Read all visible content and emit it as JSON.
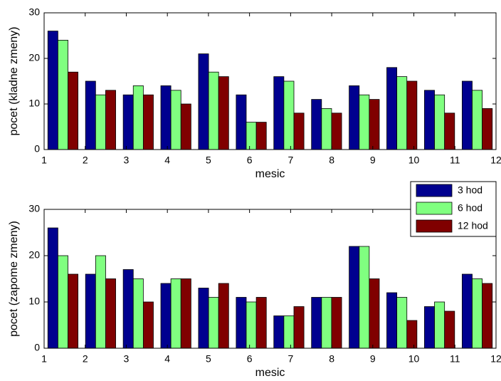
{
  "chart_data": [
    {
      "type": "bar",
      "xlabel": "mesic",
      "ylabel": "pocet (kladne zmeny)",
      "x": [
        1.458,
        2.375,
        3.292,
        4.208,
        5.125,
        6.042,
        6.958,
        7.875,
        8.792,
        9.708,
        10.625,
        11.542
      ],
      "series": [
        {
          "color": "#00008f",
          "values": [
            26,
            15,
            12,
            14,
            21,
            12,
            16,
            11,
            14,
            18,
            13,
            15
          ]
        },
        {
          "color": "#80ff80",
          "values": [
            24,
            12,
            14,
            13,
            17,
            6,
            15,
            9,
            12,
            16,
            12,
            13
          ]
        },
        {
          "color": "#800000",
          "values": [
            17,
            13,
            12,
            10,
            16,
            6,
            8,
            8,
            11,
            15,
            8,
            9
          ]
        }
      ],
      "xlim": [
        1,
        12
      ],
      "xticks": [
        1,
        2,
        3,
        4,
        5,
        6,
        7,
        8,
        9,
        10,
        11,
        12
      ],
      "ylim": [
        0,
        30
      ],
      "yticks": [
        0,
        10,
        20,
        30
      ]
    },
    {
      "type": "bar",
      "xlabel": "mesic",
      "ylabel": "pocet (zapome zmeny)",
      "x": [
        1.458,
        2.375,
        3.292,
        4.208,
        5.125,
        6.042,
        6.958,
        7.875,
        8.792,
        9.708,
        10.625,
        11.542
      ],
      "series": [
        {
          "name": "3 hod",
          "color": "#00008f",
          "values": [
            26,
            16,
            17,
            14,
            13,
            11,
            7,
            11,
            22,
            12,
            9,
            16
          ]
        },
        {
          "name": "6 hod",
          "color": "#80ff80",
          "values": [
            20,
            20,
            15,
            15,
            11,
            10,
            7,
            11,
            22,
            11,
            10,
            15
          ]
        },
        {
          "name": "12 hod",
          "color": "#800000",
          "values": [
            16,
            15,
            10,
            15,
            14,
            11,
            9,
            11,
            15,
            6,
            8,
            14
          ]
        }
      ],
      "xlim": [
        1,
        12
      ],
      "xticks": [
        1,
        2,
        3,
        4,
        5,
        6,
        7,
        8,
        9,
        10,
        11,
        12
      ],
      "ylim": [
        0,
        30
      ],
      "yticks": [
        0,
        10,
        20,
        30
      ],
      "legend": "right"
    }
  ]
}
